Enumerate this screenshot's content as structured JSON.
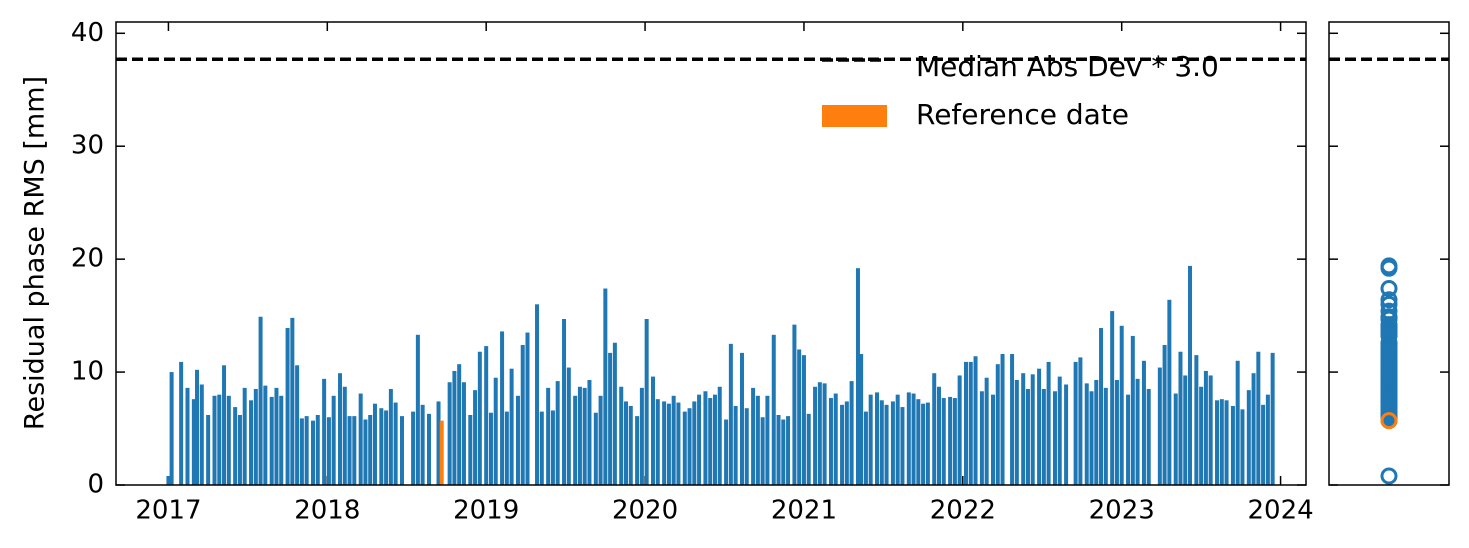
{
  "chart_data": {
    "type": "bar",
    "ylabel": "Residual phase RMS [mm]",
    "xlim": [
      2016.67,
      2024.16
    ],
    "xticks": [
      2017,
      2018,
      2019,
      2020,
      2021,
      2022,
      2023,
      2024
    ],
    "ylim": [
      0,
      41
    ],
    "yticks": [
      0,
      10,
      20,
      30,
      40
    ],
    "series": [
      {
        "color": "#1f77b4",
        "x": [
          2017.0,
          2017.02,
          2017.08,
          2017.12,
          2017.16,
          2017.18,
          2017.21,
          2017.25,
          2017.29,
          2017.32,
          2017.35,
          2017.38,
          2017.42,
          2017.45,
          2017.48,
          2017.52,
          2017.55,
          2017.58,
          2017.61,
          2017.65,
          2017.68,
          2017.71,
          2017.75,
          2017.78,
          2017.81,
          2017.84,
          2017.87,
          2017.91,
          2017.94,
          2017.98,
          2018.01,
          2018.04,
          2018.08,
          2018.11,
          2018.14,
          2018.17,
          2018.21,
          2018.24,
          2018.27,
          2018.3,
          2018.34,
          2018.37,
          2018.4,
          2018.43,
          2018.47,
          2018.54,
          2018.57,
          2018.6,
          2018.64,
          2018.7,
          2018.77,
          2018.8,
          2018.83,
          2018.86,
          2018.9,
          2018.93,
          2018.96,
          2019.0,
          2019.03,
          2019.06,
          2019.1,
          2019.13,
          2019.16,
          2019.2,
          2019.23,
          2019.26,
          2019.32,
          2019.35,
          2019.39,
          2019.42,
          2019.45,
          2019.49,
          2019.52,
          2019.56,
          2019.59,
          2019.62,
          2019.65,
          2019.69,
          2019.72,
          2019.75,
          2019.78,
          2019.81,
          2019.85,
          2019.88,
          2019.91,
          2019.95,
          2019.98,
          2020.01,
          2020.05,
          2020.08,
          2020.12,
          2020.15,
          2020.18,
          2020.21,
          2020.25,
          2020.28,
          2020.31,
          2020.34,
          2020.38,
          2020.41,
          2020.44,
          2020.47,
          2020.51,
          2020.54,
          2020.57,
          2020.61,
          2020.64,
          2020.68,
          2020.71,
          2020.74,
          2020.77,
          2020.81,
          2020.84,
          2020.87,
          2020.9,
          2020.94,
          2020.97,
          2021.0,
          2021.03,
          2021.07,
          2021.1,
          2021.13,
          2021.17,
          2021.2,
          2021.24,
          2021.27,
          2021.3,
          2021.34,
          2021.36,
          2021.39,
          2021.42,
          2021.46,
          2021.49,
          2021.52,
          2021.56,
          2021.59,
          2021.62,
          2021.66,
          2021.69,
          2021.72,
          2021.75,
          2021.78,
          2021.82,
          2021.85,
          2021.88,
          2021.92,
          2021.95,
          2021.98,
          2022.02,
          2022.05,
          2022.08,
          2022.12,
          2022.15,
          2022.19,
          2022.22,
          2022.25,
          2022.31,
          2022.34,
          2022.38,
          2022.41,
          2022.44,
          2022.48,
          2022.51,
          2022.54,
          2022.58,
          2022.61,
          2022.65,
          2022.71,
          2022.74,
          2022.78,
          2022.81,
          2022.84,
          2022.87,
          2022.9,
          2022.94,
          2022.97,
          2023.0,
          2023.04,
          2023.07,
          2023.1,
          2023.14,
          2023.17,
          2023.24,
          2023.27,
          2023.3,
          2023.34,
          2023.37,
          2023.4,
          2023.43,
          2023.47,
          2023.5,
          2023.53,
          2023.56,
          2023.6,
          2023.63,
          2023.66,
          2023.7,
          2023.73,
          2023.76,
          2023.8,
          2023.83,
          2023.86,
          2023.89,
          2023.92,
          2023.95
        ],
        "values": [
          0.8,
          10.0,
          10.9,
          8.6,
          7.6,
          10.2,
          8.9,
          6.2,
          7.9,
          8.0,
          10.6,
          7.9,
          6.9,
          6.2,
          8.6,
          7.5,
          8.5,
          14.9,
          8.8,
          7.8,
          8.6,
          7.9,
          13.9,
          14.8,
          10.6,
          5.9,
          6.1,
          5.7,
          6.2,
          9.4,
          6.0,
          7.9,
          9.9,
          8.7,
          6.1,
          6.1,
          8.1,
          5.8,
          6.2,
          7.2,
          6.8,
          6.6,
          8.5,
          7.3,
          6.1,
          6.5,
          13.3,
          7.1,
          6.3,
          7.4,
          9.1,
          10.1,
          10.7,
          9.1,
          6.2,
          8.4,
          11.8,
          12.3,
          6.4,
          9.5,
          13.6,
          6.5,
          10.3,
          7.9,
          12.4,
          13.5,
          16.0,
          6.5,
          8.6,
          6.6,
          9.2,
          14.7,
          10.4,
          7.9,
          8.7,
          8.6,
          9.3,
          6.4,
          7.9,
          17.4,
          11.7,
          12.6,
          8.7,
          7.4,
          7.0,
          6.1,
          8.6,
          14.7,
          9.6,
          7.6,
          7.4,
          7.2,
          7.9,
          7.3,
          6.5,
          6.8,
          7.4,
          8.0,
          8.3,
          7.7,
          8.0,
          8.7,
          5.8,
          12.5,
          7.0,
          11.7,
          6.8,
          8.6,
          7.9,
          6.0,
          7.9,
          13.3,
          6.2,
          5.8,
          6.1,
          14.2,
          12.0,
          11.5,
          6.3,
          8.7,
          9.1,
          9.0,
          7.7,
          8.1,
          7.1,
          7.4,
          9.2,
          19.2,
          11.6,
          6.5,
          8.0,
          8.2,
          7.5,
          7.1,
          7.4,
          8.0,
          6.9,
          8.2,
          8.1,
          7.6,
          7.2,
          7.3,
          9.9,
          8.7,
          7.7,
          7.8,
          7.7,
          9.7,
          10.9,
          10.9,
          11.4,
          8.3,
          9.5,
          8.0,
          10.7,
          11.6,
          11.6,
          9.3,
          9.9,
          8.5,
          9.8,
          10.3,
          8.5,
          10.9,
          8.3,
          9.6,
          8.9,
          10.9,
          11.3,
          9.0,
          8.3,
          9.3,
          13.9,
          8.6,
          15.4,
          9.3,
          14.1,
          8.0,
          13.2,
          9.4,
          11.0,
          8.5,
          10.4,
          12.4,
          16.4,
          8.1,
          11.8,
          9.7,
          19.4,
          11.5,
          8.7,
          10.1,
          9.7,
          7.5,
          7.6,
          7.5,
          7.0,
          11.0,
          6.7,
          8.4,
          9.9,
          11.8,
          7.1,
          8.0,
          11.7
        ]
      },
      {
        "name": "Reference date",
        "color": "#ff7f0e",
        "x": [
          2018.72
        ],
        "values": [
          5.7
        ]
      }
    ],
    "hlines": [
      {
        "name": "Median Abs Dev * 3.0",
        "value": 37.7,
        "color": "#000000",
        "style": "dashed"
      }
    ],
    "legend": "upper right",
    "side_panel": "scatter"
  }
}
